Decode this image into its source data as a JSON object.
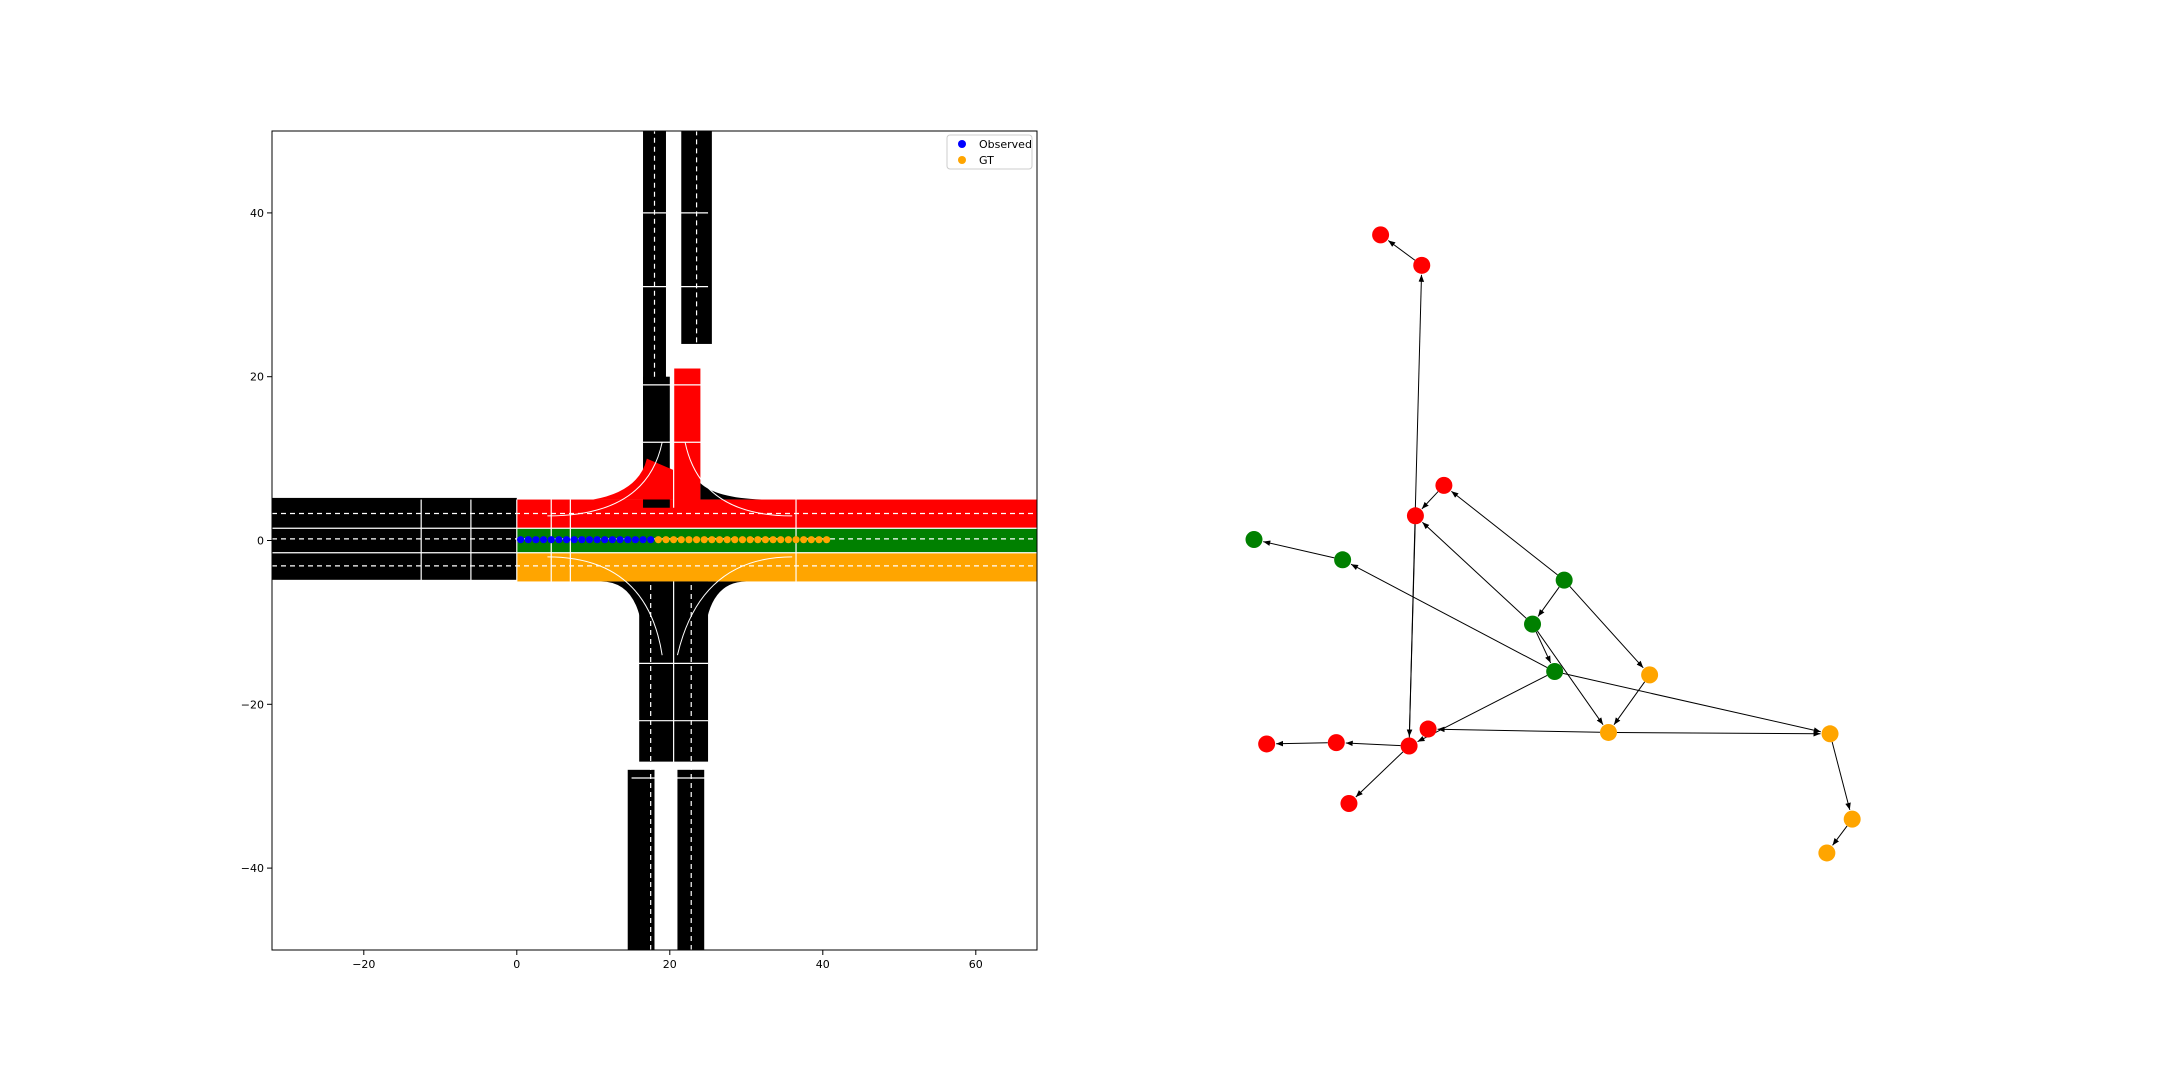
{
  "chart_data": [
    {
      "type": "scatter",
      "title": "",
      "xlabel": "",
      "ylabel": "",
      "xlim": [
        -32,
        68
      ],
      "ylim": [
        -50,
        50
      ],
      "xticks": [
        -20,
        0,
        20,
        40,
        60
      ],
      "yticks": [
        -40,
        -20,
        0,
        20,
        40
      ],
      "xtick_labels": [
        "−20",
        "0",
        "20",
        "40",
        "60"
      ],
      "ytick_labels": [
        "−40",
        "−20",
        "0",
        "20",
        "40"
      ],
      "grid": false,
      "legend_position": "top-right",
      "lane_colors": {
        "road": "#000000",
        "red": "#ff0000",
        "green": "#008000",
        "orange": "#ffa500"
      },
      "series": [
        {
          "name": "Observed",
          "color": "#0000ff",
          "x": [
            0.5,
            1.5,
            2.5,
            3.5,
            4.5,
            5.5,
            6.5,
            7.5,
            8.5,
            9.5,
            10.5,
            11.5,
            12.5,
            13.5,
            14.5,
            15.5,
            16.5,
            17.5
          ],
          "y": [
            0.1,
            0.1,
            0.1,
            0.1,
            0.1,
            0.1,
            0.1,
            0.1,
            0.1,
            0.1,
            0.1,
            0.1,
            0.1,
            0.1,
            0.1,
            0.1,
            0.1,
            0.1
          ]
        },
        {
          "name": "GT",
          "color": "#ffa500",
          "x": [
            18.5,
            19.5,
            20.5,
            21.5,
            22.5,
            23.5,
            24.5,
            25.5,
            26.5,
            27.5,
            28.5,
            29.5,
            30.5,
            31.5,
            32.5,
            33.5,
            34.5,
            35.5,
            36.5,
            37.5,
            38.5,
            39.5,
            40.5
          ],
          "y": [
            0.1,
            0.1,
            0.1,
            0.1,
            0.1,
            0.1,
            0.1,
            0.1,
            0.1,
            0.1,
            0.1,
            0.1,
            0.1,
            0.1,
            0.1,
            0.1,
            0.1,
            0.1,
            0.1,
            0.1,
            0.1,
            0.1,
            0.1
          ]
        }
      ]
    },
    {
      "type": "graph",
      "nodes": [
        {
          "id": "r1",
          "color": "#ff0000",
          "x": 0.2,
          "y": 0.95
        },
        {
          "id": "r2",
          "color": "#ff0000",
          "x": 0.265,
          "y": 0.905
        },
        {
          "id": "r3",
          "color": "#ff0000",
          "x": 0.3,
          "y": 0.58
        },
        {
          "id": "r4",
          "color": "#ff0000",
          "x": 0.255,
          "y": 0.535
        },
        {
          "id": "r5",
          "color": "#ff0000",
          "x": 0.275,
          "y": 0.22
        },
        {
          "id": "r6",
          "color": "#ff0000",
          "x": 0.245,
          "y": 0.195
        },
        {
          "id": "r7",
          "color": "#ff0000",
          "x": 0.13,
          "y": 0.2
        },
        {
          "id": "r8",
          "color": "#ff0000",
          "x": 0.02,
          "y": 0.198
        },
        {
          "id": "r9",
          "color": "#ff0000",
          "x": 0.15,
          "y": 0.11
        },
        {
          "id": "g1",
          "color": "#008000",
          "x": 0.0,
          "y": 0.5
        },
        {
          "id": "g2",
          "color": "#008000",
          "x": 0.14,
          "y": 0.47
        },
        {
          "id": "g3",
          "color": "#008000",
          "x": 0.49,
          "y": 0.44
        },
        {
          "id": "g4",
          "color": "#008000",
          "x": 0.44,
          "y": 0.375
        },
        {
          "id": "g5",
          "color": "#008000",
          "x": 0.475,
          "y": 0.305
        },
        {
          "id": "o1",
          "color": "#ffa500",
          "x": 0.625,
          "y": 0.3
        },
        {
          "id": "o2",
          "color": "#ffa500",
          "x": 0.56,
          "y": 0.215
        },
        {
          "id": "o3",
          "color": "#ffa500",
          "x": 0.91,
          "y": 0.213
        },
        {
          "id": "o4",
          "color": "#ffa500",
          "x": 0.945,
          "y": 0.087
        },
        {
          "id": "o5",
          "color": "#ffa500",
          "x": 0.905,
          "y": 0.037
        }
      ],
      "edges": [
        [
          "r2",
          "r1"
        ],
        [
          "r3",
          "r4"
        ],
        [
          "r4",
          "r6"
        ],
        [
          "r6",
          "r2"
        ],
        [
          "r6",
          "r7"
        ],
        [
          "r7",
          "r8"
        ],
        [
          "r6",
          "r9"
        ],
        [
          "g2",
          "g1"
        ],
        [
          "g3",
          "r3"
        ],
        [
          "g3",
          "g4"
        ],
        [
          "g3",
          "o1"
        ],
        [
          "g4",
          "r4"
        ],
        [
          "g4",
          "g5"
        ],
        [
          "g4",
          "o2"
        ],
        [
          "g5",
          "g2"
        ],
        [
          "g5",
          "r6"
        ],
        [
          "g5",
          "o3"
        ],
        [
          "o1",
          "o2"
        ],
        [
          "o2",
          "r5"
        ],
        [
          "o2",
          "o3"
        ],
        [
          "o3",
          "o4"
        ],
        [
          "o4",
          "o5"
        ]
      ]
    }
  ]
}
